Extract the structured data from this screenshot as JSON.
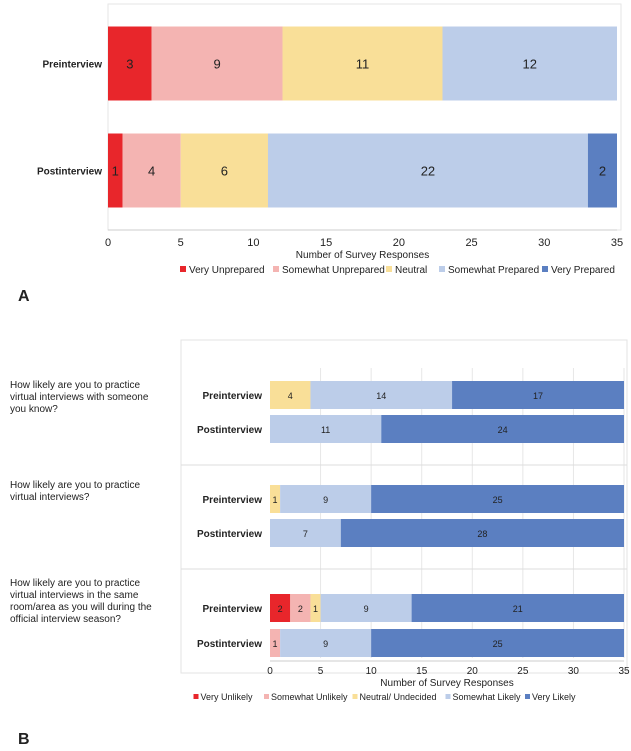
{
  "chart_data": [
    {
      "type": "bar",
      "orientation": "horizontal",
      "stacked": true,
      "panel": "A",
      "categories": [
        "Preinterview",
        "Postinterview"
      ],
      "series": [
        {
          "name": "Very Unprepared",
          "color": "#e8262b",
          "values": [
            3,
            1
          ]
        },
        {
          "name": "Somewhat Unprepared",
          "color": "#f4b4b2",
          "values": [
            9,
            4
          ]
        },
        {
          "name": "Neutral",
          "color": "#f9df98",
          "values": [
            11,
            6
          ]
        },
        {
          "name": "Somewhat Prepared",
          "color": "#bccde9",
          "values": [
            12,
            22
          ]
        },
        {
          "name": "Very Prepared",
          "color": "#5b7fc1",
          "values": [
            0,
            2
          ]
        }
      ],
      "xlabel": "Number of Survey Responses",
      "xlim": [
        0,
        35
      ],
      "xticks": [
        0,
        5,
        10,
        15,
        20,
        25,
        30,
        35
      ],
      "grid": false,
      "legend": "bottom"
    },
    {
      "type": "bar",
      "orientation": "horizontal",
      "stacked": true,
      "panel": "B",
      "groups": [
        {
          "question": "How likely are you to practice virtual interviews with someone you know?",
          "categories": [
            "Preinterview",
            "Postinterview"
          ]
        },
        {
          "question": "How likely are you to practice virtual interviews?",
          "categories": [
            "Preinterview",
            "Postinterview"
          ]
        },
        {
          "question": "How likely are you to practice virtual interviews in the same room/area as you will during the official interview season?",
          "categories": [
            "Preinterview",
            "Postinterview"
          ]
        }
      ],
      "series": [
        {
          "name": "Very Unlikely",
          "color": "#e8262b",
          "values": [
            0,
            0,
            0,
            0,
            2,
            0
          ]
        },
        {
          "name": "Somewhat Unlikely",
          "color": "#f4b4b2",
          "values": [
            0,
            0,
            0,
            0,
            2,
            1
          ]
        },
        {
          "name": "Neutral/ Undecided",
          "color": "#f9df98",
          "values": [
            4,
            0,
            1,
            0,
            1,
            0
          ]
        },
        {
          "name": "Somewhat Likely",
          "color": "#bccde9",
          "values": [
            14,
            11,
            9,
            7,
            9,
            9
          ]
        },
        {
          "name": "Very Likely",
          "color": "#5b7fc1",
          "values": [
            17,
            24,
            25,
            28,
            21,
            25
          ]
        }
      ],
      "xlabel": "Number of Survey Responses",
      "xlim": [
        0,
        35
      ],
      "xticks": [
        0,
        5,
        10,
        15,
        20,
        25,
        30,
        35
      ],
      "grid": true,
      "legend": "bottom"
    }
  ],
  "panels": {
    "a": "A",
    "b": "B"
  }
}
